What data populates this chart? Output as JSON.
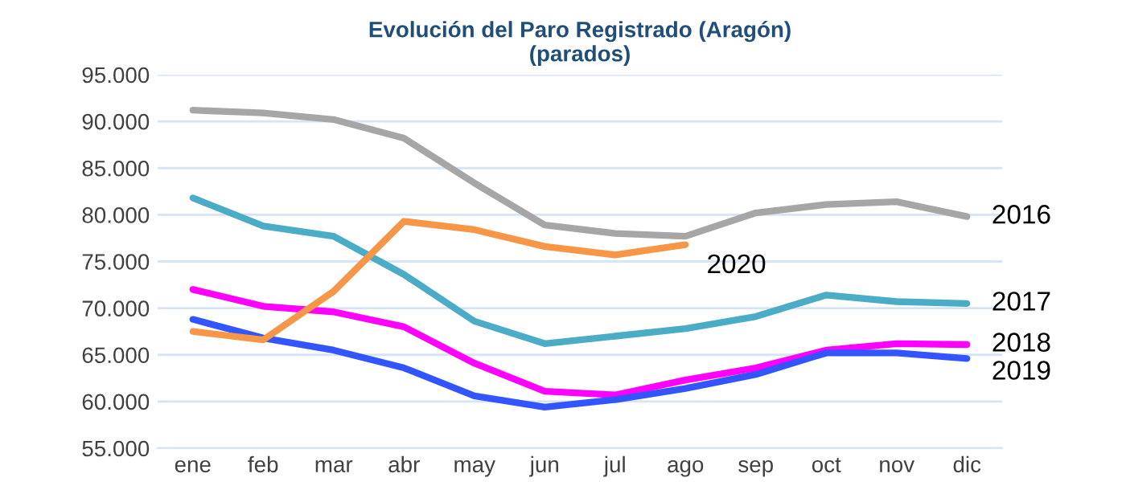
{
  "chart_data": {
    "type": "line",
    "title": "Evolución del Paro Registrado (Aragón)\n(parados)",
    "categories": [
      "ene",
      "feb",
      "mar",
      "abr",
      "may",
      "jun",
      "jul",
      "ago",
      "sep",
      "oct",
      "nov",
      "dic"
    ],
    "series": [
      {
        "name": "2016",
        "color": "#a6a6a6",
        "values": [
          91200,
          90900,
          90200,
          88200,
          83400,
          78900,
          78000,
          77700,
          80200,
          81100,
          81400,
          79800
        ]
      },
      {
        "name": "2017",
        "color": "#4bacc6",
        "values": [
          81800,
          78800,
          77700,
          73600,
          68600,
          66200,
          67000,
          67800,
          69100,
          71400,
          70700,
          70500
        ]
      },
      {
        "name": "2018",
        "color": "#ff00ff",
        "values": [
          72000,
          70200,
          69600,
          68000,
          64100,
          61100,
          60700,
          62300,
          63600,
          65500,
          66200,
          66100
        ]
      },
      {
        "name": "2019",
        "color": "#3355ff",
        "values": [
          68800,
          66800,
          65500,
          63600,
          60600,
          59400,
          60200,
          61400,
          62900,
          65200,
          65200,
          64600
        ]
      },
      {
        "name": "2020",
        "color": "#f79646",
        "values": [
          67500,
          66600,
          71800,
          79300,
          78400,
          76600,
          75700,
          76800,
          null,
          null,
          null,
          null
        ]
      }
    ],
    "ylim": [
      55000,
      95000
    ],
    "yticks": [
      {
        "value": 55000,
        "label": "55.000"
      },
      {
        "value": 60000,
        "label": "60.000"
      },
      {
        "value": 65000,
        "label": "65.000"
      },
      {
        "value": 70000,
        "label": "70.000"
      },
      {
        "value": 75000,
        "label": "75.000"
      },
      {
        "value": 80000,
        "label": "80.000"
      },
      {
        "value": 85000,
        "label": "85.000"
      },
      {
        "value": 90000,
        "label": "90.000"
      },
      {
        "value": 95000,
        "label": "95.000"
      }
    ],
    "grid": "y",
    "legend": false,
    "marker": "none",
    "line_style": "solid"
  }
}
